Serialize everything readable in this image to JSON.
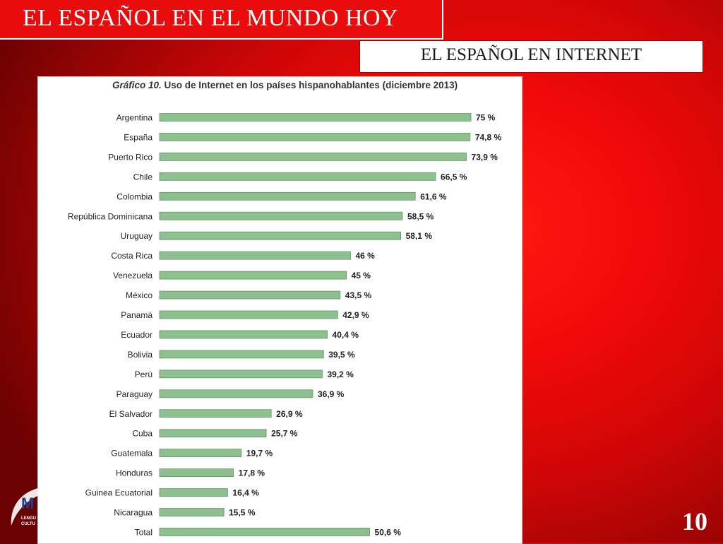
{
  "slide": {
    "title": "EL ESPAÑOL EN EL MUNDO HOY",
    "subtitle": "EL ESPAÑOL EN INTERNET",
    "page_number": "10",
    "logo_letter": "M",
    "logo_text_1": "LENGU",
    "logo_text_2": "CULTU"
  },
  "colors": {
    "bar_fill": "#8dbf8f",
    "bar_edge": "#5f9a63",
    "background_red": "#e80c0c",
    "text_dark": "#222222"
  },
  "chart_data": {
    "type": "bar",
    "orientation": "horizontal",
    "title_italic": "Gráfico 10.",
    "title_rest": " Uso de Internet en los países hispanohablantes (diciembre 2013)",
    "categories": [
      "Argentina",
      "España",
      "Puerto Rico",
      "Chile",
      "Colombia",
      "República Dominicana",
      "Uruguay",
      "Costa Rica",
      "Venezuela",
      "México",
      "Panamá",
      "Ecuador",
      "Bolivia",
      "Perú",
      "Paraguay",
      "El Salvador",
      "Cuba",
      "Guatemala",
      "Honduras",
      "Guinea Ecuatorial",
      "Nicaragua",
      "Total"
    ],
    "values": [
      75,
      74.8,
      73.9,
      66.5,
      61.6,
      58.5,
      58.1,
      46,
      45,
      43.5,
      42.9,
      40.4,
      39.5,
      39.2,
      36.9,
      26.9,
      25.7,
      19.7,
      17.8,
      16.4,
      15.5,
      50.6
    ],
    "value_labels": [
      "75 %",
      "74,8 %",
      "73,9 %",
      "66,5 %",
      "61,6 %",
      "58,5 %",
      "58,1 %",
      "46 %",
      "45 %",
      "43,5 %",
      "42,9 %",
      "40,4 %",
      "39,5 %",
      "39,2 %",
      "36,9 %",
      "26,9 %",
      "25,7 %",
      "19,7 %",
      "17,8 %",
      "16,4 %",
      "15,5 %",
      "50,6 %"
    ],
    "xlim": [
      0,
      75
    ],
    "grid": false,
    "legend": "none"
  }
}
